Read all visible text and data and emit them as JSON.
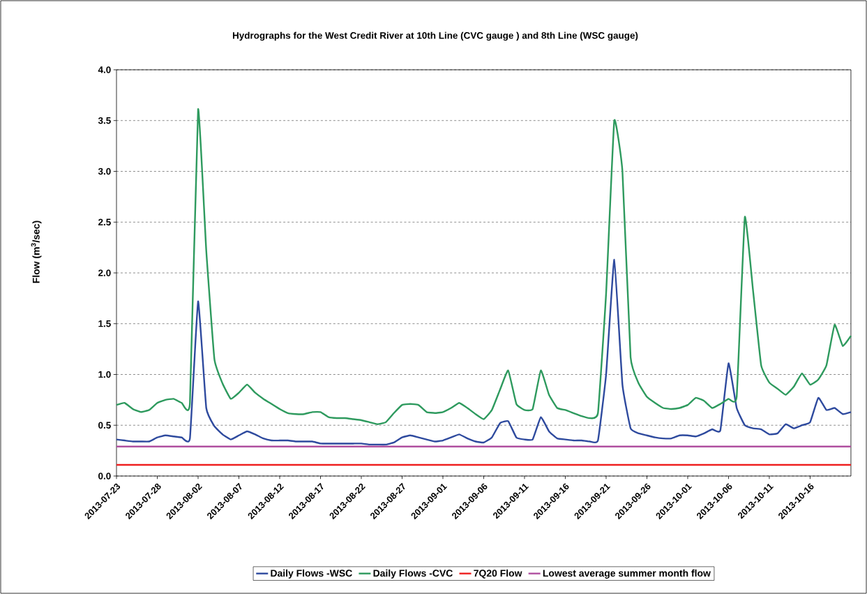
{
  "chart_data": {
    "type": "line",
    "title": "Hydrographs for the West Credit River at 10th Line (CVC gauge ) and 8th Line (WSC gauge)",
    "ylabel": "Flow (m$^{3}$/sec)",
    "xlim": [
      "2013-07-23",
      "2013-10-21"
    ],
    "x": [
      "2013-07-23",
      "2013-07-24",
      "2013-07-25",
      "2013-07-26",
      "2013-07-27",
      "2013-07-28",
      "2013-07-29",
      "2013-07-30",
      "2013-07-31",
      "2013-08-01",
      "2013-08-02",
      "2013-08-03",
      "2013-08-04",
      "2013-08-05",
      "2013-08-06",
      "2013-08-07",
      "2013-08-08",
      "2013-08-09",
      "2013-08-10",
      "2013-08-11",
      "2013-08-12",
      "2013-08-13",
      "2013-08-14",
      "2013-08-15",
      "2013-08-16",
      "2013-08-17",
      "2013-08-18",
      "2013-08-19",
      "2013-08-20",
      "2013-08-21",
      "2013-08-22",
      "2013-08-23",
      "2013-08-24",
      "2013-08-25",
      "2013-08-26",
      "2013-08-27",
      "2013-08-28",
      "2013-08-29",
      "2013-08-30",
      "2013-08-31",
      "2013-09-01",
      "2013-09-02",
      "2013-09-03",
      "2013-09-04",
      "2013-09-05",
      "2013-09-06",
      "2013-09-07",
      "2013-09-08",
      "2013-09-09",
      "2013-09-10",
      "2013-09-11",
      "2013-09-12",
      "2013-09-13",
      "2013-09-14",
      "2013-09-15",
      "2013-09-16",
      "2013-09-17",
      "2013-09-18",
      "2013-09-19",
      "2013-09-20",
      "2013-09-21",
      "2013-09-22",
      "2013-09-23",
      "2013-09-24",
      "2013-09-25",
      "2013-09-26",
      "2013-09-27",
      "2013-09-28",
      "2013-09-29",
      "2013-09-30",
      "2013-10-01",
      "2013-10-02",
      "2013-10-03",
      "2013-10-04",
      "2013-10-05",
      "2013-10-06",
      "2013-10-07",
      "2013-10-08",
      "2013-10-09",
      "2013-10-10",
      "2013-10-11",
      "2013-10-12",
      "2013-10-13",
      "2013-10-14",
      "2013-10-15",
      "2013-10-16",
      "2013-10-17",
      "2013-10-18",
      "2013-10-19",
      "2013-10-20",
      "2013-10-21"
    ],
    "xticks": [
      "2013-07-23",
      "2013-07-28",
      "2013-08-02",
      "2013-08-07",
      "2013-08-12",
      "2013-08-17",
      "2013-08-22",
      "2013-08-27",
      "2013-09-01",
      "2013-09-06",
      "2013-09-11",
      "2013-09-16",
      "2013-09-21",
      "2013-09-26",
      "2013-10-01",
      "2013-10-06",
      "2013-10-11",
      "2013-10-16"
    ],
    "ylim": [
      0,
      4
    ],
    "yticks": [
      {
        "value": 0,
        "label": "0.0"
      },
      {
        "value": 0.5,
        "label": "0.5"
      },
      {
        "value": 1,
        "label": "1.0"
      },
      {
        "value": 1.5,
        "label": "1.5"
      },
      {
        "value": 2,
        "label": "2.0"
      },
      {
        "value": 2.5,
        "label": "2.5"
      },
      {
        "value": 3,
        "label": "3.0"
      },
      {
        "value": 3.5,
        "label": "3.5"
      },
      {
        "value": 4,
        "label": "4.0"
      }
    ],
    "grid": "y",
    "legend": "bottom",
    "marker": "none",
    "line_style": "solid",
    "series": [
      {
        "name": "Daily Flows -WSC",
        "color": "#2e4a9e",
        "values": [
          0.36,
          0.35,
          0.34,
          0.34,
          0.34,
          0.38,
          0.4,
          0.39,
          0.38,
          0.37,
          1.72,
          0.67,
          0.49,
          0.41,
          0.36,
          0.4,
          0.44,
          0.41,
          0.37,
          0.35,
          0.35,
          0.35,
          0.34,
          0.34,
          0.34,
          0.32,
          0.32,
          0.32,
          0.32,
          0.32,
          0.32,
          0.31,
          0.31,
          0.31,
          0.33,
          0.38,
          0.4,
          0.38,
          0.36,
          0.34,
          0.35,
          0.38,
          0.41,
          0.37,
          0.34,
          0.33,
          0.38,
          0.52,
          0.54,
          0.38,
          0.36,
          0.36,
          0.58,
          0.44,
          0.37,
          0.36,
          0.35,
          0.35,
          0.34,
          0.35,
          1.0,
          2.13,
          0.9,
          0.47,
          0.42,
          0.4,
          0.38,
          0.37,
          0.37,
          0.4,
          0.4,
          0.39,
          0.42,
          0.46,
          0.45,
          1.11,
          0.67,
          0.5,
          0.47,
          0.46,
          0.41,
          0.42,
          0.51,
          0.47,
          0.5,
          0.53,
          0.77,
          0.65,
          0.67,
          0.61,
          0.63
        ]
      },
      {
        "name": "Daily Flows -CVC",
        "color": "#2e9a5e",
        "values": [
          0.7,
          0.72,
          0.66,
          0.63,
          0.65,
          0.72,
          0.75,
          0.76,
          0.72,
          0.72,
          3.61,
          2.22,
          1.15,
          0.91,
          0.76,
          0.82,
          0.9,
          0.82,
          0.76,
          0.71,
          0.66,
          0.62,
          0.61,
          0.61,
          0.63,
          0.63,
          0.58,
          0.57,
          0.57,
          0.56,
          0.55,
          0.53,
          0.51,
          0.53,
          0.62,
          0.7,
          0.71,
          0.7,
          0.63,
          0.62,
          0.63,
          0.67,
          0.72,
          0.67,
          0.61,
          0.56,
          0.65,
          0.85,
          1.04,
          0.71,
          0.65,
          0.66,
          1.04,
          0.8,
          0.67,
          0.65,
          0.62,
          0.59,
          0.57,
          0.62,
          1.8,
          3.5,
          3.0,
          1.17,
          0.91,
          0.78,
          0.72,
          0.67,
          0.66,
          0.67,
          0.7,
          0.77,
          0.74,
          0.67,
          0.71,
          0.76,
          0.78,
          2.55,
          1.83,
          1.09,
          0.92,
          0.86,
          0.8,
          0.88,
          1.01,
          0.9,
          0.95,
          1.09,
          1.49,
          1.28,
          1.38
        ]
      },
      {
        "name": "7Q20 Flow",
        "color": "#ee2020",
        "x": [
          "2013-07-23",
          "2013-10-21"
        ],
        "values": [
          0.11,
          0.11
        ]
      },
      {
        "name": "Lowest average summer month flow",
        "color": "#b050a0",
        "x": [
          "2013-07-23",
          "2013-10-21"
        ],
        "values": [
          0.29,
          0.29
        ]
      }
    ]
  }
}
